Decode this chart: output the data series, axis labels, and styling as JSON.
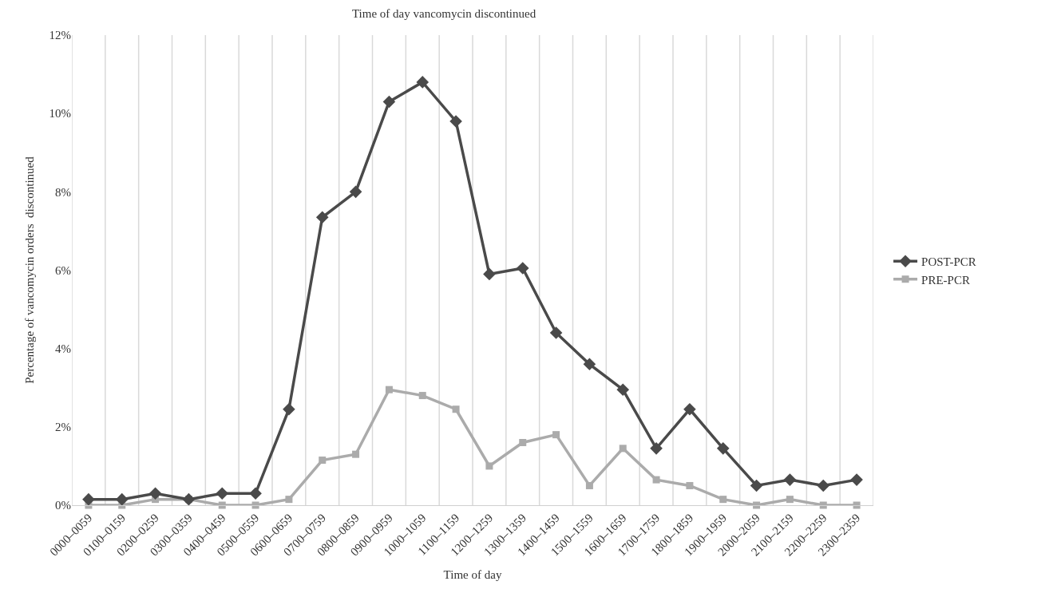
{
  "chart_data": {
    "type": "line",
    "title": "Time of day vancomycin discontinued",
    "xlabel": "Time of day",
    "ylabel": "Percentage of vancomycin orders  discontinued",
    "categories": [
      "0000–0059",
      "0100–0159",
      "0200–0259",
      "0300–0359",
      "0400–0459",
      "0500–0559",
      "0600–0659",
      "0700–0759",
      "0800–0859",
      "0900–0959",
      "1000–1059",
      "1100–1159",
      "1200–1259",
      "1300–1359",
      "1400–1459",
      "1500–1559",
      "1600–1659",
      "1700–1759",
      "1800–1859",
      "1900–1959",
      "2000–2059",
      "2100–2159",
      "2200–2259",
      "2300–2359"
    ],
    "series": [
      {
        "name": "POST-PCR",
        "color": "#4a4a4a",
        "marker": "diamond",
        "values": [
          0.15,
          0.15,
          0.3,
          0.15,
          0.3,
          0.3,
          2.45,
          7.35,
          8.0,
          10.3,
          10.8,
          9.8,
          5.9,
          6.05,
          4.4,
          3.6,
          2.95,
          1.45,
          2.45,
          1.45,
          0.5,
          0.65,
          0.5,
          0.65
        ]
      },
      {
        "name": "PRE-PCR",
        "color": "#ababab",
        "marker": "square",
        "values": [
          0,
          0,
          0.15,
          0.15,
          0,
          0,
          0.15,
          1.15,
          1.3,
          2.95,
          2.8,
          2.45,
          1.0,
          1.6,
          1.8,
          0.5,
          1.45,
          0.65,
          0.5,
          0.15,
          0,
          0.15,
          0,
          0
        ]
      }
    ],
    "ylim": [
      0,
      12
    ],
    "yticks": [
      {
        "value": 0,
        "label": "0%"
      },
      {
        "value": 2,
        "label": "2%"
      },
      {
        "value": 4,
        "label": "4%"
      },
      {
        "value": 6,
        "label": "6%"
      },
      {
        "value": 8,
        "label": "8%"
      },
      {
        "value": 10,
        "label": "10%"
      },
      {
        "value": 12,
        "label": "12%"
      }
    ],
    "grid": "x",
    "legend": "right",
    "line_style": "solid"
  }
}
